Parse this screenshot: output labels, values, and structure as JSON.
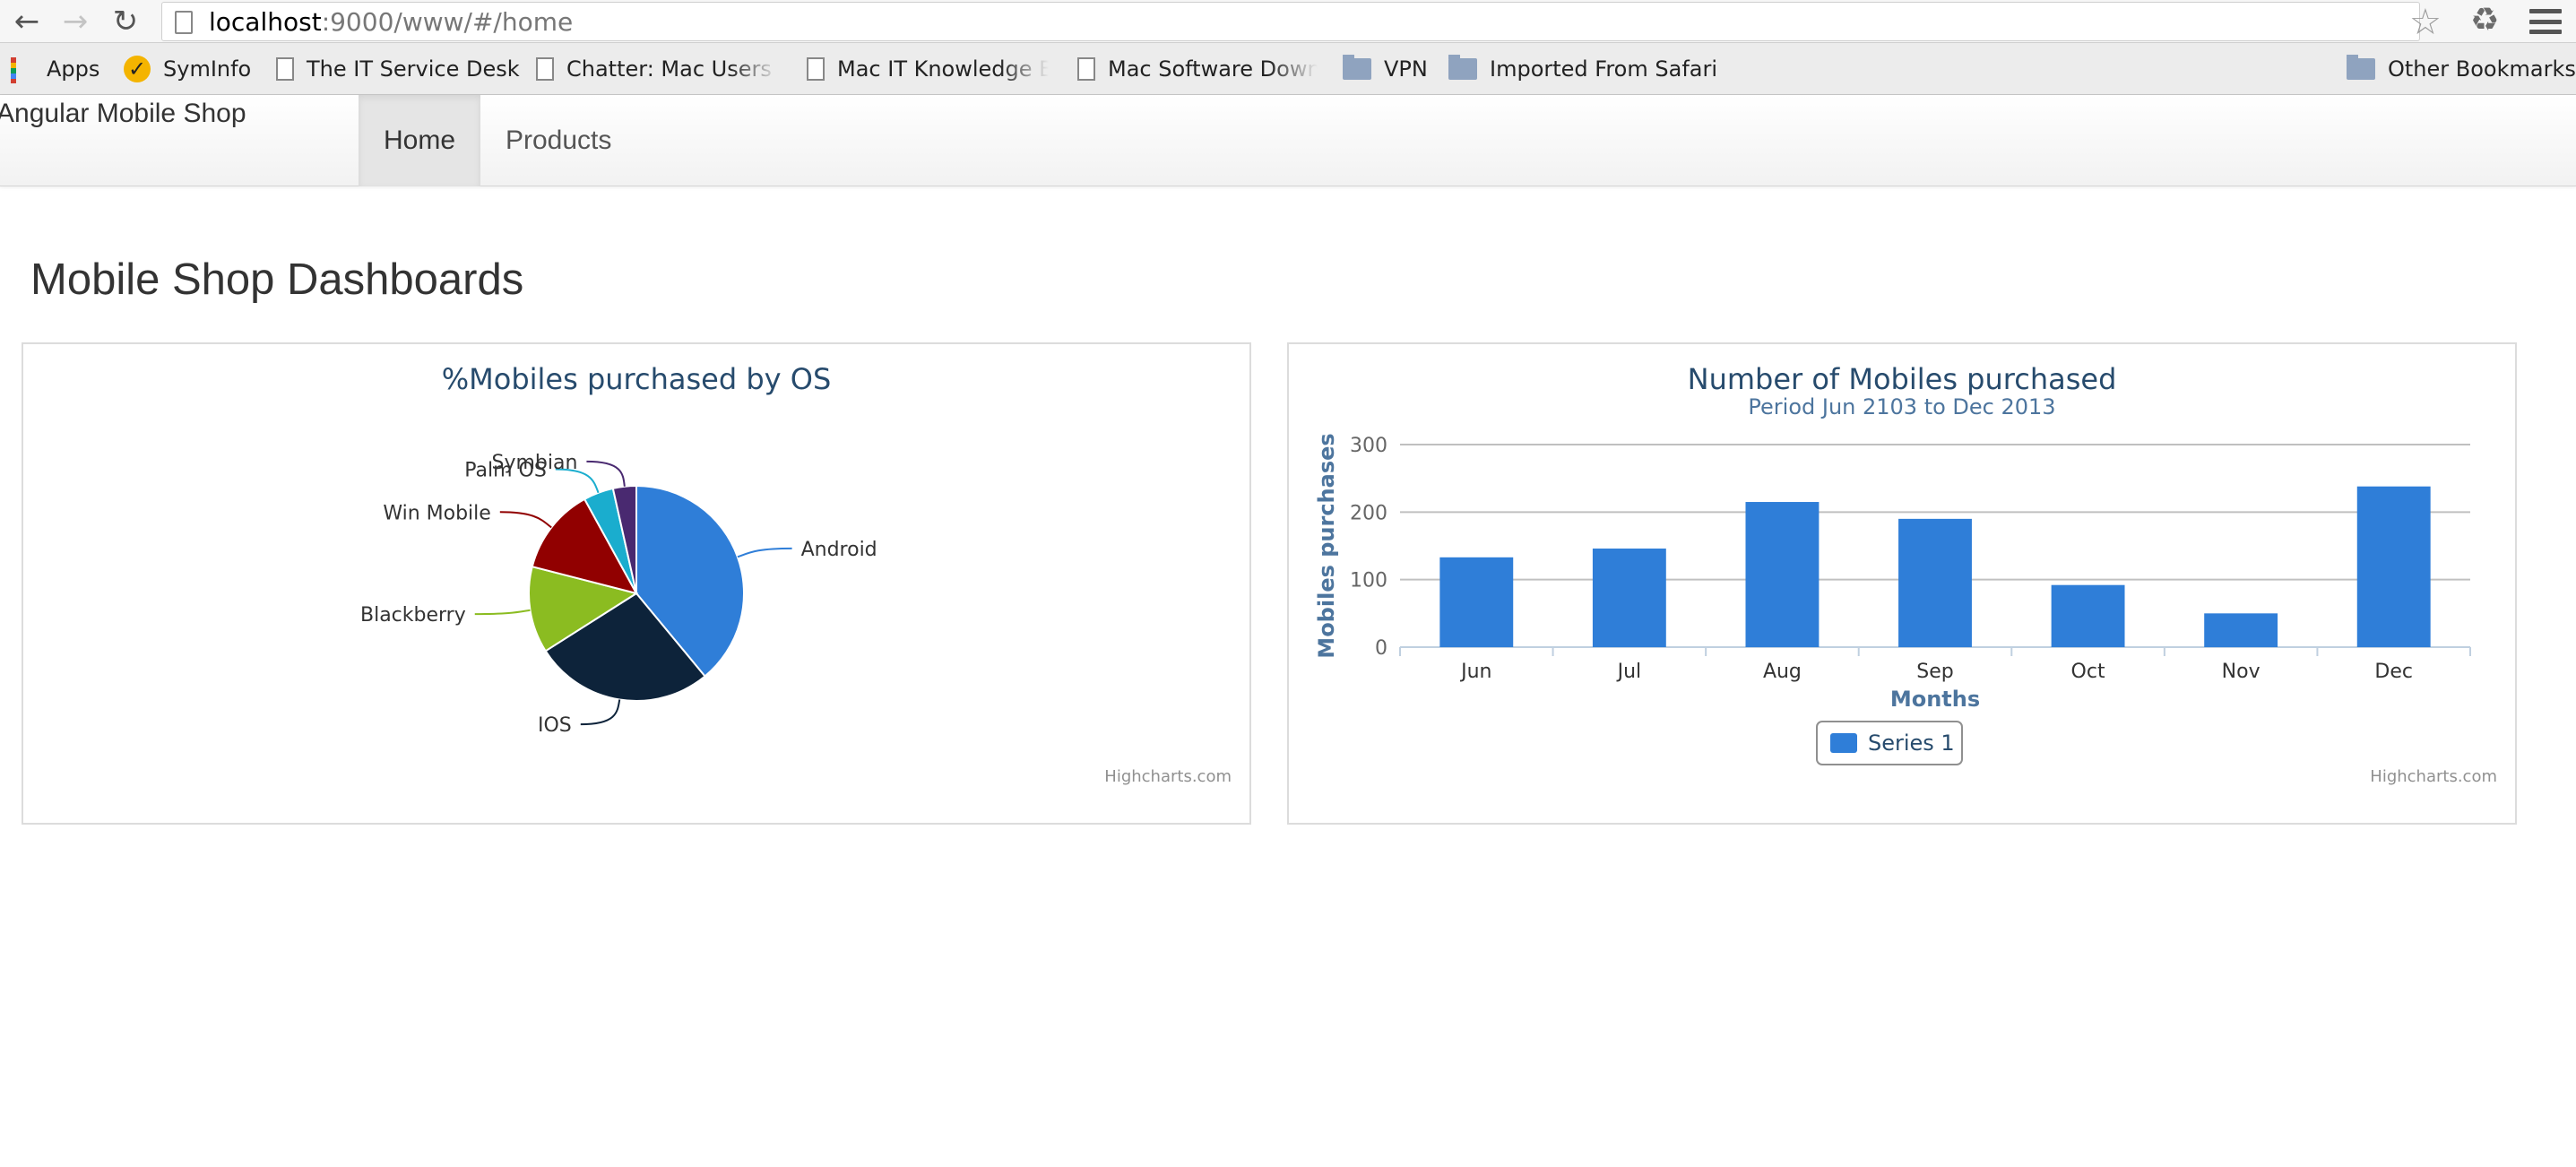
{
  "browser": {
    "url_host": "localhost",
    "url_path": ":9000/www/#/home",
    "back_icon": "back-arrow-icon",
    "forward_icon": "forward-arrow-icon",
    "reload_icon": "reload-icon",
    "bookmarks": [
      {
        "label": "Apps",
        "icon": "apps-grid-icon"
      },
      {
        "label": "SymInfo",
        "icon": "syminfo-check-icon"
      },
      {
        "label": "The IT Service Desk",
        "icon": "document-icon"
      },
      {
        "label": "Chatter: Mac Users C",
        "icon": "document-icon"
      },
      {
        "label": "Mac IT Knowledge Ba",
        "icon": "document-icon"
      },
      {
        "label": "Mac Software Downlo",
        "icon": "document-icon"
      },
      {
        "label": "VPN",
        "icon": "folder-icon"
      },
      {
        "label": "Imported From Safari",
        "icon": "folder-icon"
      }
    ],
    "other_bookmarks": "Other Bookmarks"
  },
  "navbar": {
    "brand": "Angular Mobile Shop",
    "tabs": [
      {
        "label": "Home",
        "active": true
      },
      {
        "label": "Products",
        "active": false
      }
    ]
  },
  "page": {
    "title": "Mobile Shop Dashboards"
  },
  "credits": "Highcharts.com",
  "chart_data": [
    {
      "type": "pie",
      "title": "%Mobiles purchased by OS",
      "slices": [
        {
          "label": "Android",
          "value": 39,
          "color": "#2f7ed8"
        },
        {
          "label": "IOS",
          "value": 27,
          "color": "#0d233a"
        },
        {
          "label": "Blackberry",
          "value": 13,
          "color": "#8bbc21"
        },
        {
          "label": "Win Mobile",
          "value": 13,
          "color": "#910000"
        },
        {
          "label": "Palm OS",
          "value": 4.5,
          "color": "#1aadce"
        },
        {
          "label": "Symbian",
          "value": 3.5,
          "color": "#492970"
        }
      ]
    },
    {
      "type": "bar",
      "title": "Number of Mobiles purchased",
      "subtitle": "Period Jun 2103 to Dec 2013",
      "xlabel": "Months",
      "ylabel": "Mobiles purchases",
      "categories": [
        "Jun",
        "Jul",
        "Aug",
        "Sep",
        "Oct",
        "Nov",
        "Dec"
      ],
      "series": [
        {
          "name": "Series 1",
          "values": [
            133,
            146,
            215,
            190,
            92,
            50,
            238
          ],
          "color": "#2f7ed8"
        }
      ],
      "ylim": [
        0,
        300
      ],
      "yticks": [
        0,
        100,
        200,
        300
      ],
      "grid": true,
      "legend": "bottom-center"
    }
  ]
}
